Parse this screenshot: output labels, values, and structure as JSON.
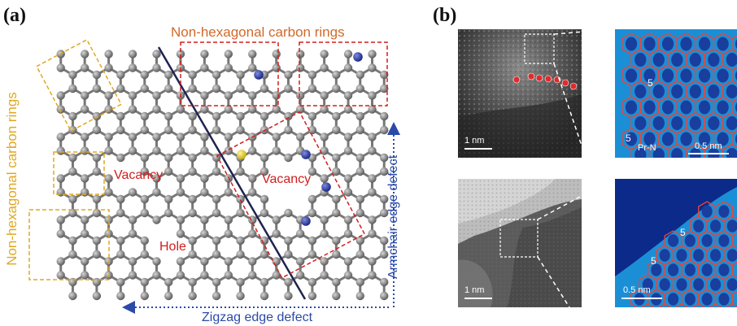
{
  "panel_a": {
    "label": "(a)",
    "top_label": "Non-hexagonal carbon rings",
    "side_label": "Non-hexagonal carbon rings",
    "vacancy_left": "Vacancy",
    "vacancy_right": "Vacancy",
    "hole": "Hole",
    "armchair": "Armchair edge defect",
    "zigzag": "Zigzag edge defect",
    "colors": {
      "carbon": "#8a8a8a",
      "nitrogen": "#2d3fa6",
      "sulfur": "#e7d42a",
      "orange_box": "#d2692a",
      "yellow_box": "#e0a820",
      "red_box": "#d21e1e",
      "arrow": "#2b4aa8"
    }
  },
  "panel_b": {
    "label": "(b)",
    "top_left_scale": "1 nm",
    "bottom_left_scale": "1 nm",
    "top_right_scale": "0.5 nm",
    "bottom_right_scale": "0.5 nm",
    "ring_label": "5",
    "pr_n": "Pr-N"
  }
}
